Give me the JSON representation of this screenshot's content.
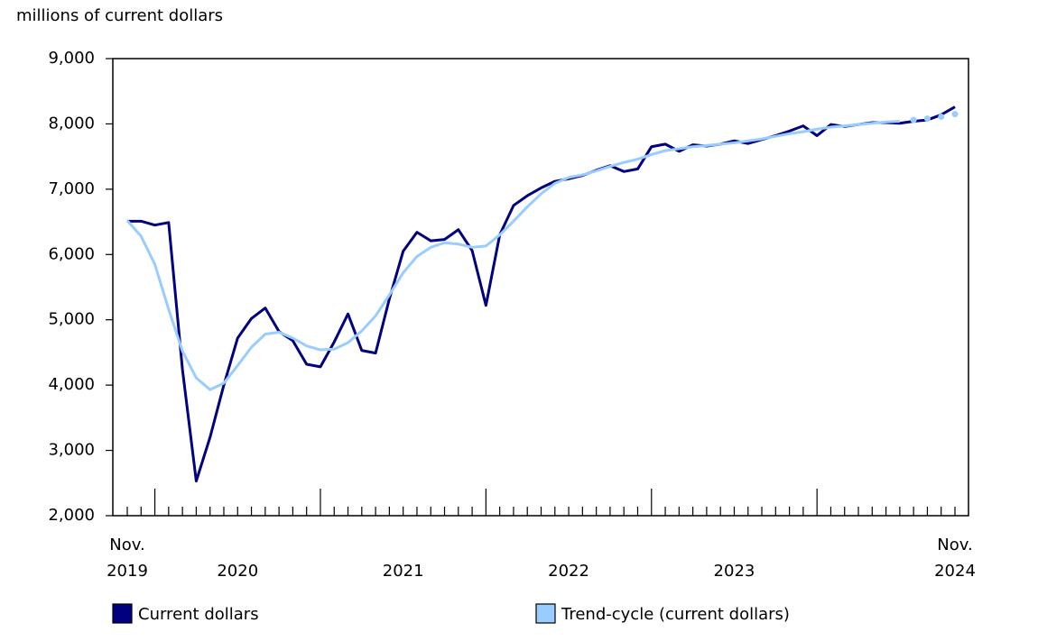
{
  "chart_data": {
    "type": "line",
    "y_label": "millions of current dollars",
    "categories": [
      "Nov.\n2019",
      null,
      null,
      null,
      null,
      null,
      null,
      null,
      "2020",
      null,
      null,
      null,
      null,
      null,
      null,
      null,
      null,
      null,
      null,
      null,
      "2021",
      null,
      null,
      null,
      null,
      null,
      null,
      null,
      null,
      null,
      null,
      null,
      "2022",
      null,
      null,
      null,
      null,
      null,
      null,
      null,
      null,
      null,
      null,
      null,
      "2023",
      null,
      null,
      null,
      null,
      null,
      null,
      null,
      null,
      null,
      null,
      null,
      null,
      null,
      null,
      null,
      "Nov.\n2024"
    ],
    "series": [
      {
        "name": "Current dollars",
        "color": "#000080",
        "values": [
          6510,
          6510,
          6450,
          6490,
          4240,
          2530,
          3200,
          4000,
          4720,
          5020,
          5180,
          4820,
          4680,
          4320,
          4280,
          4660,
          5090,
          4530,
          4490,
          5320,
          6050,
          6340,
          6210,
          6230,
          6380,
          6060,
          5220,
          6300,
          6750,
          6900,
          7020,
          7120,
          7160,
          7210,
          7290,
          7360,
          7270,
          7310,
          7650,
          7690,
          7580,
          7680,
          7660,
          7690,
          7740,
          7700,
          7760,
          7820,
          7890,
          7970,
          7820,
          7990,
          7960,
          7990,
          8020,
          8020,
          8010,
          8040,
          8060,
          8140,
          8260
        ]
      },
      {
        "name": "Trend-cycle (current dollars)",
        "color": "#99ccff",
        "values": [
          6520,
          6280,
          5850,
          5160,
          4520,
          4110,
          3930,
          4030,
          4300,
          4580,
          4780,
          4810,
          4720,
          4600,
          4540,
          4550,
          4650,
          4830,
          5060,
          5380,
          5720,
          5970,
          6110,
          6180,
          6160,
          6110,
          6130,
          6300,
          6510,
          6730,
          6930,
          7090,
          7180,
          7220,
          7280,
          7350,
          7410,
          7460,
          7530,
          7590,
          7620,
          7650,
          7670,
          7690,
          7710,
          7740,
          7770,
          7810,
          7850,
          7880,
          7920,
          7950,
          7970,
          7990,
          8010,
          8030,
          8040,
          8060,
          8080,
          8110,
          8150
        ]
      }
    ],
    "ylim": [
      2000,
      9000
    ],
    "yticks": [
      {
        "value": 2000,
        "label": "2,000"
      },
      {
        "value": 3000,
        "label": "3,000"
      },
      {
        "value": 4000,
        "label": "4,000"
      },
      {
        "value": 5000,
        "label": "5,000"
      },
      {
        "value": 6000,
        "label": "6,000"
      },
      {
        "value": 7000,
        "label": "7,000"
      },
      {
        "value": 8000,
        "label": "8,000"
      },
      {
        "value": 9000,
        "label": "9,000"
      }
    ]
  }
}
